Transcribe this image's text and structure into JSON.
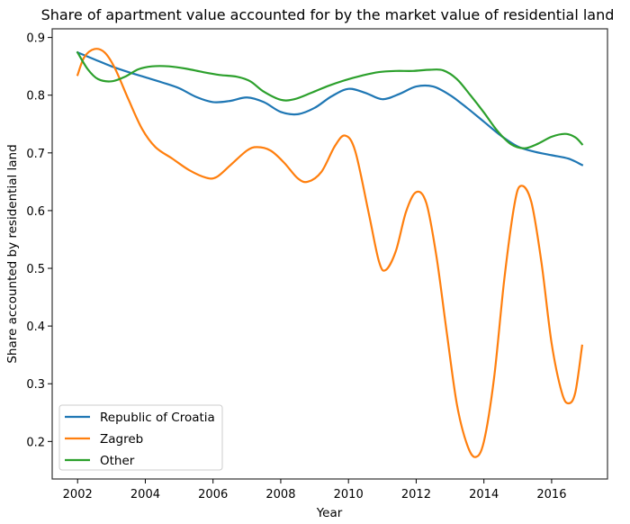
{
  "chart_data": {
    "type": "line",
    "title": "Share of apartment value accounted for by the market value of residential land",
    "xlabel": "Year",
    "ylabel": "Share accounted by residential land",
    "xlim": [
      2001.25,
      2017.65
    ],
    "ylim": [
      0.135,
      0.915
    ],
    "xticks": [
      2002,
      2004,
      2006,
      2008,
      2010,
      2012,
      2014,
      2016
    ],
    "xtick_labels": [
      "2002",
      "2004",
      "2006",
      "2008",
      "2010",
      "2012",
      "2014",
      "2016"
    ],
    "yticks": [
      0.2,
      0.3,
      0.4,
      0.5,
      0.6,
      0.7,
      0.8,
      0.9
    ],
    "ytick_labels": [
      "0.2",
      "0.3",
      "0.4",
      "0.5",
      "0.6",
      "0.7",
      "0.8",
      "0.9"
    ],
    "grid": false,
    "legend_position": "lower-left",
    "series": [
      {
        "name": "Republic of Croatia",
        "color": "#1f77b4",
        "points": [
          [
            2002.0,
            0.874
          ],
          [
            2002.5,
            0.862
          ],
          [
            2003.0,
            0.85
          ],
          [
            2003.5,
            0.84
          ],
          [
            2004.0,
            0.831
          ],
          [
            2004.5,
            0.822
          ],
          [
            2005.0,
            0.812
          ],
          [
            2005.5,
            0.797
          ],
          [
            2006.0,
            0.788
          ],
          [
            2006.5,
            0.79
          ],
          [
            2007.0,
            0.796
          ],
          [
            2007.5,
            0.788
          ],
          [
            2008.0,
            0.771
          ],
          [
            2008.5,
            0.767
          ],
          [
            2009.0,
            0.778
          ],
          [
            2009.5,
            0.798
          ],
          [
            2010.0,
            0.811
          ],
          [
            2010.5,
            0.804
          ],
          [
            2011.0,
            0.793
          ],
          [
            2011.5,
            0.802
          ],
          [
            2012.0,
            0.815
          ],
          [
            2012.5,
            0.815
          ],
          [
            2013.0,
            0.8
          ],
          [
            2013.5,
            0.778
          ],
          [
            2014.0,
            0.754
          ],
          [
            2014.5,
            0.73
          ],
          [
            2015.0,
            0.711
          ],
          [
            2015.5,
            0.702
          ],
          [
            2016.0,
            0.696
          ],
          [
            2016.5,
            0.69
          ],
          [
            2016.9,
            0.679
          ]
        ]
      },
      {
        "name": "Zagreb",
        "color": "#ff7f0e",
        "points": [
          [
            2002.0,
            0.835
          ],
          [
            2002.2,
            0.866
          ],
          [
            2002.5,
            0.88
          ],
          [
            2002.8,
            0.874
          ],
          [
            2003.1,
            0.847
          ],
          [
            2003.5,
            0.793
          ],
          [
            2003.9,
            0.742
          ],
          [
            2004.3,
            0.71
          ],
          [
            2004.8,
            0.69
          ],
          [
            2005.3,
            0.67
          ],
          [
            2005.8,
            0.657
          ],
          [
            2006.1,
            0.658
          ],
          [
            2006.5,
            0.678
          ],
          [
            2007.0,
            0.704
          ],
          [
            2007.3,
            0.71
          ],
          [
            2007.7,
            0.704
          ],
          [
            2008.1,
            0.683
          ],
          [
            2008.5,
            0.656
          ],
          [
            2008.8,
            0.65
          ],
          [
            2009.2,
            0.667
          ],
          [
            2009.6,
            0.712
          ],
          [
            2009.9,
            0.73
          ],
          [
            2010.2,
            0.703
          ],
          [
            2010.6,
            0.595
          ],
          [
            2010.9,
            0.512
          ],
          [
            2011.1,
            0.497
          ],
          [
            2011.4,
            0.53
          ],
          [
            2011.7,
            0.598
          ],
          [
            2012.0,
            0.632
          ],
          [
            2012.3,
            0.613
          ],
          [
            2012.6,
            0.52
          ],
          [
            2012.9,
            0.39
          ],
          [
            2013.2,
            0.265
          ],
          [
            2013.5,
            0.195
          ],
          [
            2013.75,
            0.173
          ],
          [
            2014.0,
            0.2
          ],
          [
            2014.3,
            0.31
          ],
          [
            2014.6,
            0.48
          ],
          [
            2014.9,
            0.61
          ],
          [
            2015.1,
            0.643
          ],
          [
            2015.4,
            0.615
          ],
          [
            2015.7,
            0.51
          ],
          [
            2016.0,
            0.37
          ],
          [
            2016.3,
            0.285
          ],
          [
            2016.5,
            0.266
          ],
          [
            2016.7,
            0.285
          ],
          [
            2016.9,
            0.366
          ]
        ]
      },
      {
        "name": "Other",
        "color": "#2ca02c",
        "points": [
          [
            2002.0,
            0.874
          ],
          [
            2002.3,
            0.845
          ],
          [
            2002.6,
            0.828
          ],
          [
            2003.0,
            0.824
          ],
          [
            2003.4,
            0.832
          ],
          [
            2003.8,
            0.845
          ],
          [
            2004.2,
            0.85
          ],
          [
            2004.7,
            0.85
          ],
          [
            2005.2,
            0.846
          ],
          [
            2005.7,
            0.84
          ],
          [
            2006.2,
            0.835
          ],
          [
            2006.7,
            0.832
          ],
          [
            2007.1,
            0.824
          ],
          [
            2007.5,
            0.806
          ],
          [
            2008.0,
            0.792
          ],
          [
            2008.4,
            0.793
          ],
          [
            2008.9,
            0.804
          ],
          [
            2009.4,
            0.816
          ],
          [
            2009.9,
            0.826
          ],
          [
            2010.4,
            0.834
          ],
          [
            2010.9,
            0.84
          ],
          [
            2011.4,
            0.842
          ],
          [
            2011.9,
            0.842
          ],
          [
            2012.4,
            0.844
          ],
          [
            2012.8,
            0.843
          ],
          [
            2013.2,
            0.828
          ],
          [
            2013.6,
            0.8
          ],
          [
            2014.0,
            0.77
          ],
          [
            2014.4,
            0.738
          ],
          [
            2014.8,
            0.715
          ],
          [
            2015.2,
            0.708
          ],
          [
            2015.6,
            0.716
          ],
          [
            2016.0,
            0.728
          ],
          [
            2016.4,
            0.733
          ],
          [
            2016.7,
            0.727
          ],
          [
            2016.9,
            0.715
          ]
        ]
      }
    ]
  }
}
